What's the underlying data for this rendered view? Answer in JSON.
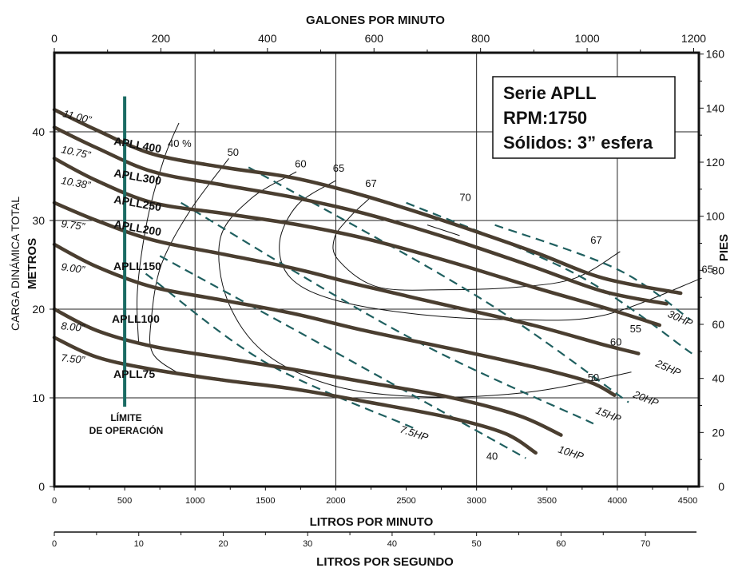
{
  "chart_data": {
    "type": "line",
    "title": "",
    "info_box": [
      "Serie APLL",
      "RPM:1750",
      "Sólidos: 3” esfera"
    ],
    "axes": {
      "x_bottom": {
        "label": "LITROS POR MINUTO",
        "range": [
          0,
          4500
        ],
        "ticks": [
          0,
          500,
          1000,
          1500,
          2000,
          2500,
          3000,
          3500,
          4000,
          4500
        ]
      },
      "x_top": {
        "label": "GALONES POR MINUTO",
        "range": [
          0,
          1200
        ],
        "ticks": [
          0,
          200,
          400,
          600,
          800,
          1000,
          1200
        ]
      },
      "x_second": {
        "label": "LITROS POR SEGUNDO",
        "range": [
          0,
          70
        ],
        "ticks": [
          0,
          10,
          20,
          30,
          40,
          50,
          60,
          70
        ]
      },
      "y_left": {
        "label_line1": "CARGA DINÁMICA TOTAL",
        "label_line2": "METROS",
        "range": [
          0,
          45
        ],
        "ticks": [
          0,
          10,
          20,
          30,
          40
        ]
      },
      "y_right": {
        "label": "PIES",
        "range": [
          0,
          160
        ],
        "ticks": [
          0,
          20,
          40,
          60,
          80,
          100,
          120,
          140,
          160
        ]
      },
      "grid": true
    },
    "operating_limit": {
      "label_line1": "LÍMITE",
      "label_line2": "DE OPERACIÓN",
      "x": 500,
      "y_range": [
        9,
        44
      ],
      "color": "#1b6b63"
    },
    "series": [
      {
        "model": "APLL400",
        "diameter": "11.00”",
        "x": [
          0,
          300,
          700,
          1200,
          1700,
          2200,
          2800,
          3400,
          3900,
          4450
        ],
        "y": [
          42.5,
          40.2,
          37.5,
          36,
          34.8,
          32.8,
          29.8,
          26.5,
          23.5,
          21.8
        ]
      },
      {
        "model": "APLL300",
        "diameter": "10.75”",
        "x": [
          0,
          300,
          700,
          1200,
          1700,
          2200,
          2800,
          3400,
          3900,
          4350
        ],
        "y": [
          40.5,
          38.2,
          35.5,
          34,
          32.6,
          30.8,
          28,
          24.8,
          22,
          20.6
        ]
      },
      {
        "model": "APLL250",
        "diameter": "10.38”",
        "x": [
          0,
          300,
          700,
          1200,
          1700,
          2200,
          2800,
          3400,
          3900,
          4300
        ],
        "y": [
          37,
          34.5,
          32,
          30.8,
          29.6,
          28,
          25.4,
          22.5,
          20.2,
          18.2
        ]
      },
      {
        "model": "APLL200",
        "diameter": "9.75”",
        "x": [
          0,
          300,
          700,
          1200,
          1700,
          2200,
          2800,
          3400,
          3900,
          4150
        ],
        "y": [
          32,
          30,
          27.8,
          26.2,
          24.6,
          22.6,
          20.4,
          18.2,
          16,
          15
        ]
      },
      {
        "model": "APLL150",
        "diameter": "9.00”",
        "x": [
          0,
          300,
          700,
          1200,
          1700,
          2200,
          2800,
          3400,
          3800,
          3980
        ],
        "y": [
          27.3,
          24.8,
          22.5,
          21,
          19.5,
          17.6,
          15.6,
          13.5,
          11.8,
          10.3
        ]
      },
      {
        "model": "APLL100",
        "diameter": "8.00”",
        "x": [
          0,
          300,
          700,
          1200,
          1700,
          2200,
          2800,
          3300,
          3600
        ],
        "y": [
          20,
          17.6,
          15.8,
          14.5,
          13.2,
          11.8,
          10.1,
          8,
          5.8
        ]
      },
      {
        "model": "APLL75",
        "diameter": "7.50”",
        "x": [
          0,
          300,
          700,
          1200,
          1700,
          2200,
          2800,
          3200,
          3420
        ],
        "y": [
          16.8,
          14.6,
          13.2,
          12,
          11,
          9.6,
          7.8,
          6,
          3.8
        ]
      }
    ],
    "efficiency_curves": [
      {
        "label": "40 %",
        "x": [
          885,
          780,
          660,
          590,
          600
        ],
        "y": [
          41,
          37,
          30,
          22,
          16
        ]
      },
      {
        "label": "50",
        "x": [
          1240,
          960,
          760,
          690,
          700,
          900
        ],
        "y": [
          37,
          31,
          25,
          19,
          15,
          12.6
        ]
      },
      {
        "label": "60",
        "x": [
          1720,
          1400,
          1180,
          1230,
          1500,
          2000,
          2650,
          3400,
          4100
        ],
        "y": [
          35.5,
          32.5,
          28,
          21,
          15,
          11.3,
          10.1,
          10.7,
          12.9
        ]
      },
      {
        "label": "65",
        "x": [
          2000,
          1730,
          1600,
          1680,
          2000,
          2600,
          3300,
          3900,
          4600
        ],
        "y": [
          34.5,
          31.8,
          27.5,
          23.5,
          21,
          19.4,
          18.8,
          19.3,
          23.5
        ]
      },
      {
        "label": "67",
        "x": [
          2240,
          2100,
          1990,
          2020,
          2300,
          2800,
          3300,
          3700,
          4020
        ],
        "y": [
          32.5,
          30.4,
          28,
          25.5,
          22.5,
          22.2,
          22.5,
          23.5,
          26.5
        ]
      },
      {
        "label": "70",
        "x": [
          2650,
          2880
        ],
        "y": [
          29.5,
          28.3
        ]
      }
    ],
    "efficiency_labels": [
      {
        "text": "40 %",
        "x": 890,
        "y": 38.3
      },
      {
        "text": "50",
        "x": 1270,
        "y": 37.3
      },
      {
        "text": "60",
        "x": 1750,
        "y": 36
      },
      {
        "text": "65",
        "x": 2020,
        "y": 35.5
      },
      {
        "text": "67",
        "x": 2250,
        "y": 33.8
      },
      {
        "text": "70",
        "x": 2920,
        "y": 32.2
      },
      {
        "text": "67",
        "x": 3850,
        "y": 27.4
      },
      {
        "text": "65",
        "x": 4640,
        "y": 24.1
      },
      {
        "text": "55",
        "x": 4130,
        "y": 17.4
      },
      {
        "text": "60",
        "x": 3990,
        "y": 15.9
      },
      {
        "text": "50",
        "x": 3830,
        "y": 11.9
      },
      {
        "text": "40",
        "x": 3110,
        "y": 3
      }
    ],
    "power_curves": [
      {
        "label": "7.5HP",
        "x": [
          650,
          1500,
          2550
        ],
        "y": [
          24,
          14,
          6.6
        ]
      },
      {
        "label": "10HP",
        "x": [
          750,
          1900,
          3350
        ],
        "y": [
          26,
          16,
          3.2
        ]
      },
      {
        "label": "15HP",
        "x": [
          900,
          2500,
          3830
        ],
        "y": [
          32,
          17,
          7.1
        ]
      },
      {
        "label": "20HP",
        "x": [
          1380,
          3000,
          4080
        ],
        "y": [
          36,
          21.5,
          9.5
        ]
      },
      {
        "label": "25HP",
        "x": [
          2500,
          3700,
          4530
        ],
        "y": [
          32,
          24,
          15
        ]
      },
      {
        "label": "30HP",
        "x": [
          3130,
          4000,
          4520
        ],
        "y": [
          29.5,
          24.5,
          18.8
        ]
      }
    ]
  }
}
